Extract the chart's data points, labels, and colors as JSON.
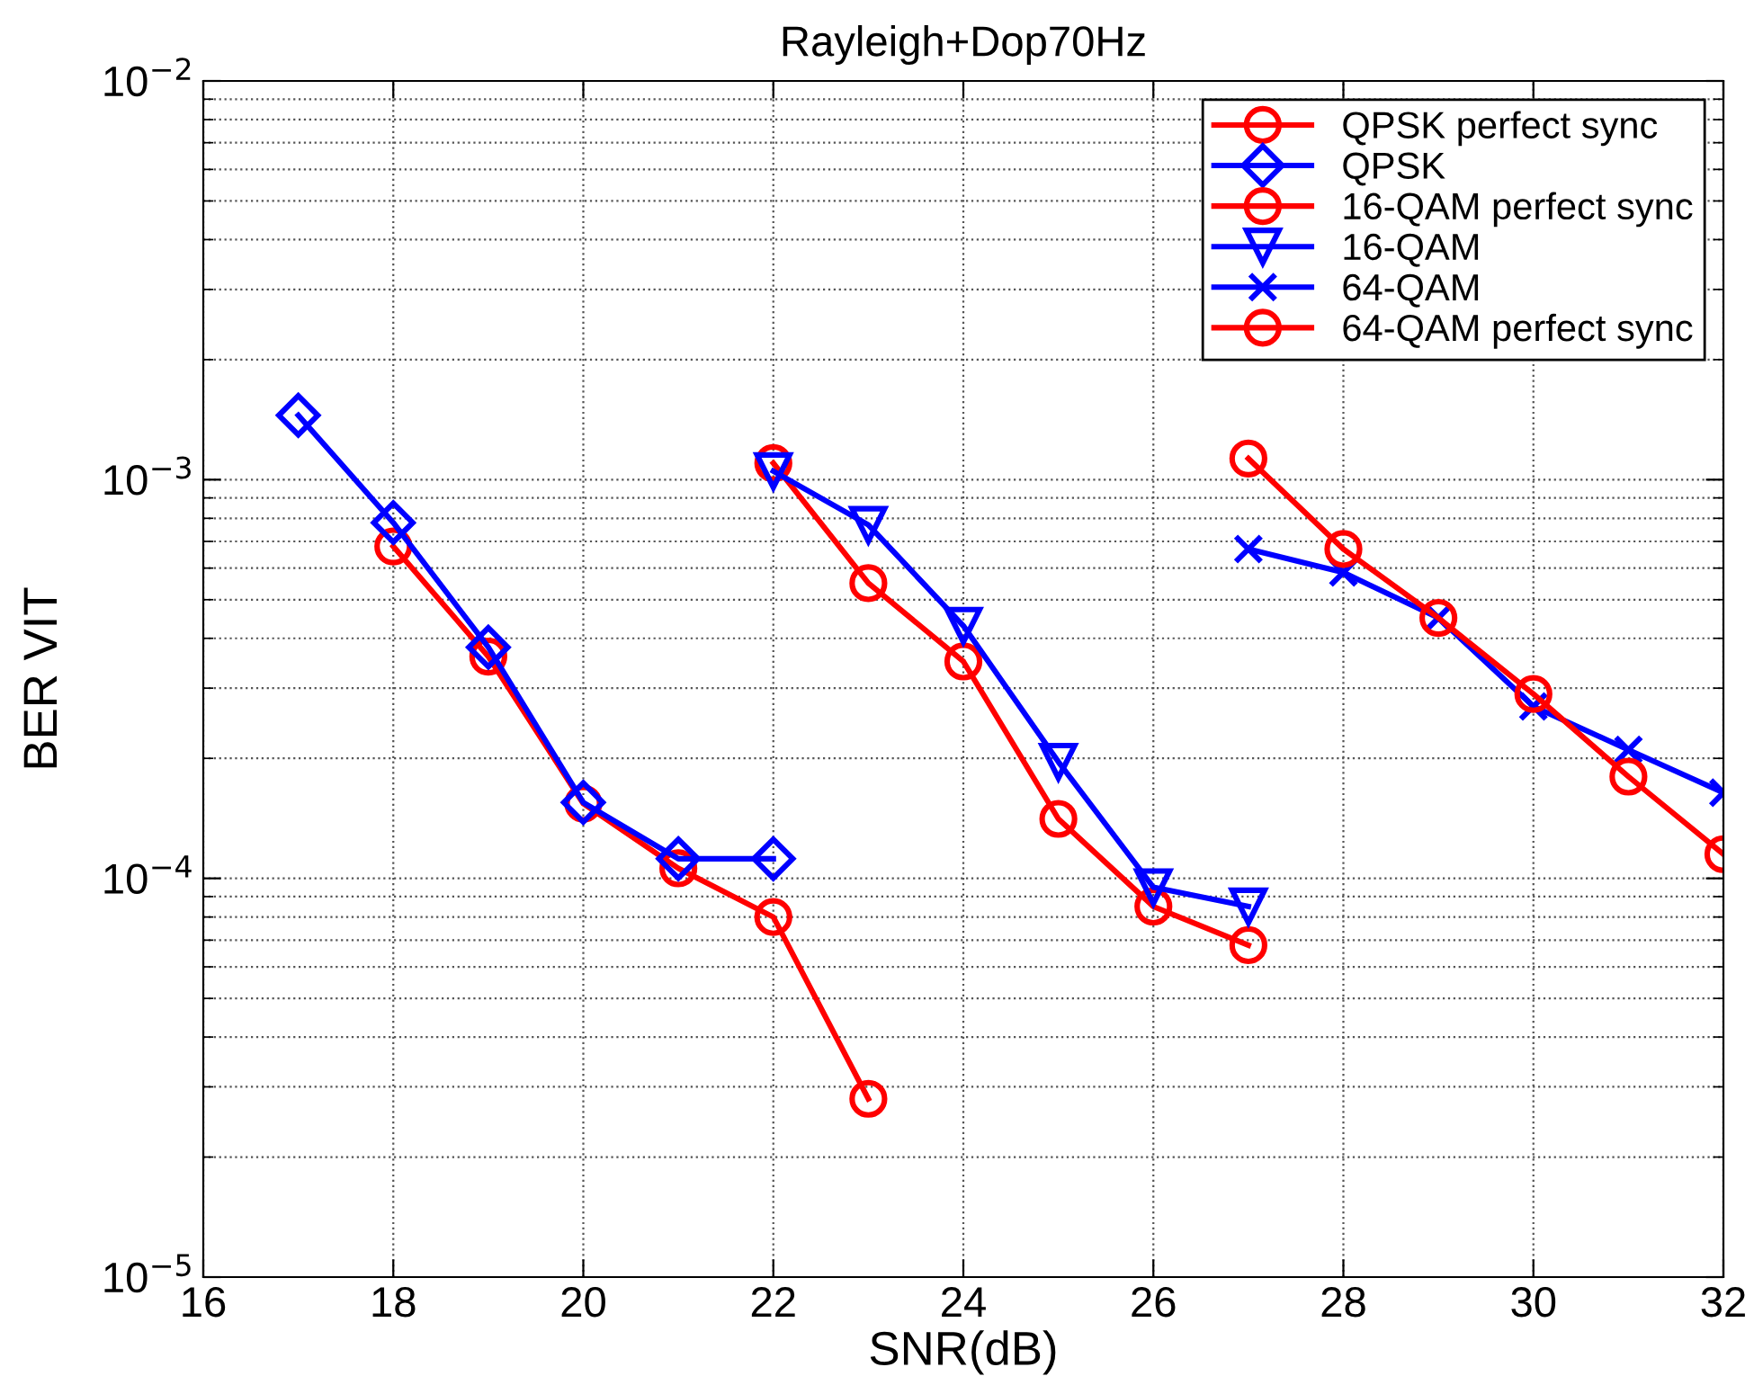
{
  "chart_data": {
    "type": "line",
    "title": "Rayleigh+Dop70Hz",
    "xlabel": "SNR(dB)",
    "ylabel": "BER VIT",
    "log": "y",
    "grid": true,
    "legend": "top right",
    "xlim": [
      16,
      32
    ],
    "xticks": [
      16,
      18,
      20,
      22,
      24,
      26,
      28,
      30,
      32
    ],
    "ylim": [
      1e-05,
      0.01
    ],
    "yticks": [
      {
        "value": 1e-05,
        "label": "10$^{−5}$"
      },
      {
        "value": 0.0001,
        "label": "10$^{−4}$"
      },
      {
        "value": 0.001,
        "label": "10$^{−3}$"
      },
      {
        "value": 0.01,
        "label": "10$^{−2}$"
      }
    ],
    "series": [
      {
        "name": "QPSK perfect sync",
        "color": "#ff0000",
        "marker": "circle",
        "x": [
          18,
          19,
          20,
          21,
          22,
          23
        ],
        "values": [
          0.00068,
          0.00036,
          0.000154,
          0.000106,
          8e-05,
          2.8e-05
        ]
      },
      {
        "name": "QPSK",
        "color": "#0000ff",
        "marker": "diamond",
        "x": [
          17,
          18,
          19,
          20,
          21,
          22
        ],
        "values": [
          0.00145,
          0.00078,
          0.00038,
          0.000155,
          0.000112,
          0.000112
        ]
      },
      {
        "name": "16-QAM perfect sync",
        "color": "#ff0000",
        "marker": "circle",
        "x": [
          22,
          23,
          24,
          25,
          26,
          27
        ],
        "values": [
          0.0011,
          0.00055,
          0.00035,
          0.000141,
          8.5e-05,
          6.8e-05
        ]
      },
      {
        "name": "16-QAM",
        "color": "#0000ff",
        "marker": "triangle",
        "x": [
          22,
          23,
          24,
          25,
          26,
          27
        ],
        "values": [
          0.00105,
          0.00077,
          0.00043,
          0.000196,
          9.5e-05,
          8.5e-05
        ]
      },
      {
        "name": "64-QAM",
        "color": "#0000ff",
        "marker": "cross",
        "x": [
          27,
          28,
          29,
          30,
          31,
          32
        ],
        "values": [
          0.00067,
          0.000585,
          0.00045,
          0.00027,
          0.00021,
          0.000164
        ]
      },
      {
        "name": "64-QAM perfect sync",
        "color": "#ff0000",
        "marker": "circle",
        "x": [
          27,
          28,
          29,
          30,
          31,
          32
        ],
        "values": [
          0.00113,
          0.00067,
          0.00045,
          0.00029,
          0.00018,
          0.000115
        ]
      }
    ]
  }
}
